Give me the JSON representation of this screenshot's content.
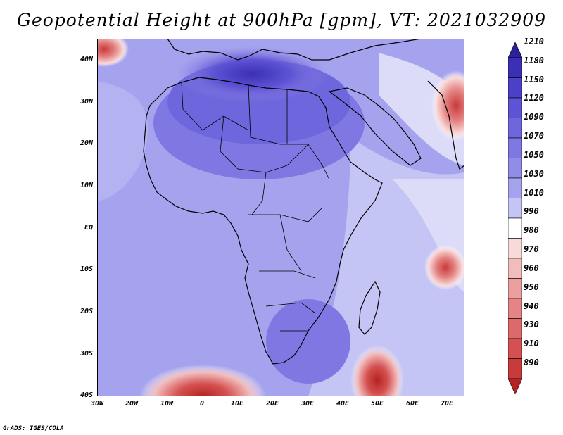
{
  "title": "Geopotential Height at 900hPa [gpm], VT: 2021032909",
  "footer": "GrADS: IGES/COLA",
  "map": {
    "lat_labels": [
      "40N",
      "30N",
      "20N",
      "10N",
      "EQ",
      "10S",
      "20S",
      "30S",
      "40S"
    ],
    "lon_labels": [
      "30W",
      "20W",
      "10W",
      "0",
      "10E",
      "20E",
      "30E",
      "40E",
      "50E",
      "60E",
      "70E"
    ]
  },
  "colorbar": {
    "levels": [
      "1210",
      "1180",
      "1150",
      "1120",
      "1090",
      "1070",
      "1050",
      "1030",
      "1010",
      "990",
      "980",
      "970",
      "960",
      "950",
      "940",
      "930",
      "910",
      "890"
    ],
    "colors": [
      "#2b1f9c",
      "#3b2fb5",
      "#4c3fc8",
      "#5d53d4",
      "#6e66dc",
      "#8078e2",
      "#918ce7",
      "#a6a3ee",
      "#c4c4f5",
      "#ffffff",
      "#f9dada",
      "#f2bcbc",
      "#eb9f9f",
      "#e48484",
      "#dd6a6a",
      "#d55151",
      "#c93a3a",
      "#b52323"
    ]
  }
}
